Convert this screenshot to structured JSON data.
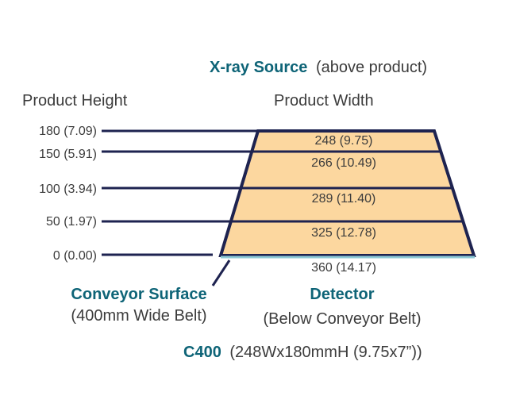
{
  "source": {
    "label": "X-ray Source",
    "note": "(above product)"
  },
  "headers": {
    "height": "Product Height",
    "width": "Product Width"
  },
  "levels": [
    {
      "height": "180 (7.09)",
      "width": "248 (9.75)"
    },
    {
      "height": "150 (5.91)",
      "width": "266 (10.49)"
    },
    {
      "height": "100 (3.94)",
      "width": "289 (11.40)"
    },
    {
      "height": "50 (1.97)",
      "width": "325 (12.78)"
    },
    {
      "height": "0 (0.00)",
      "width": "360 (14.17)"
    }
  ],
  "conveyor": {
    "label": "Conveyor Surface",
    "note": "(400mm Wide Belt)"
  },
  "detector": {
    "label": "Detector",
    "note": "(Below Conveyor Belt)"
  },
  "model": {
    "name": "C400",
    "spec": "(248Wx180mmH (9.75x7”))"
  },
  "colors": {
    "fill": "#fcd79f",
    "line": "#1e2350",
    "accent_teal": "#0e6477",
    "detector_line": "#8fcbd7",
    "text_grey": "#3c3c3c"
  }
}
